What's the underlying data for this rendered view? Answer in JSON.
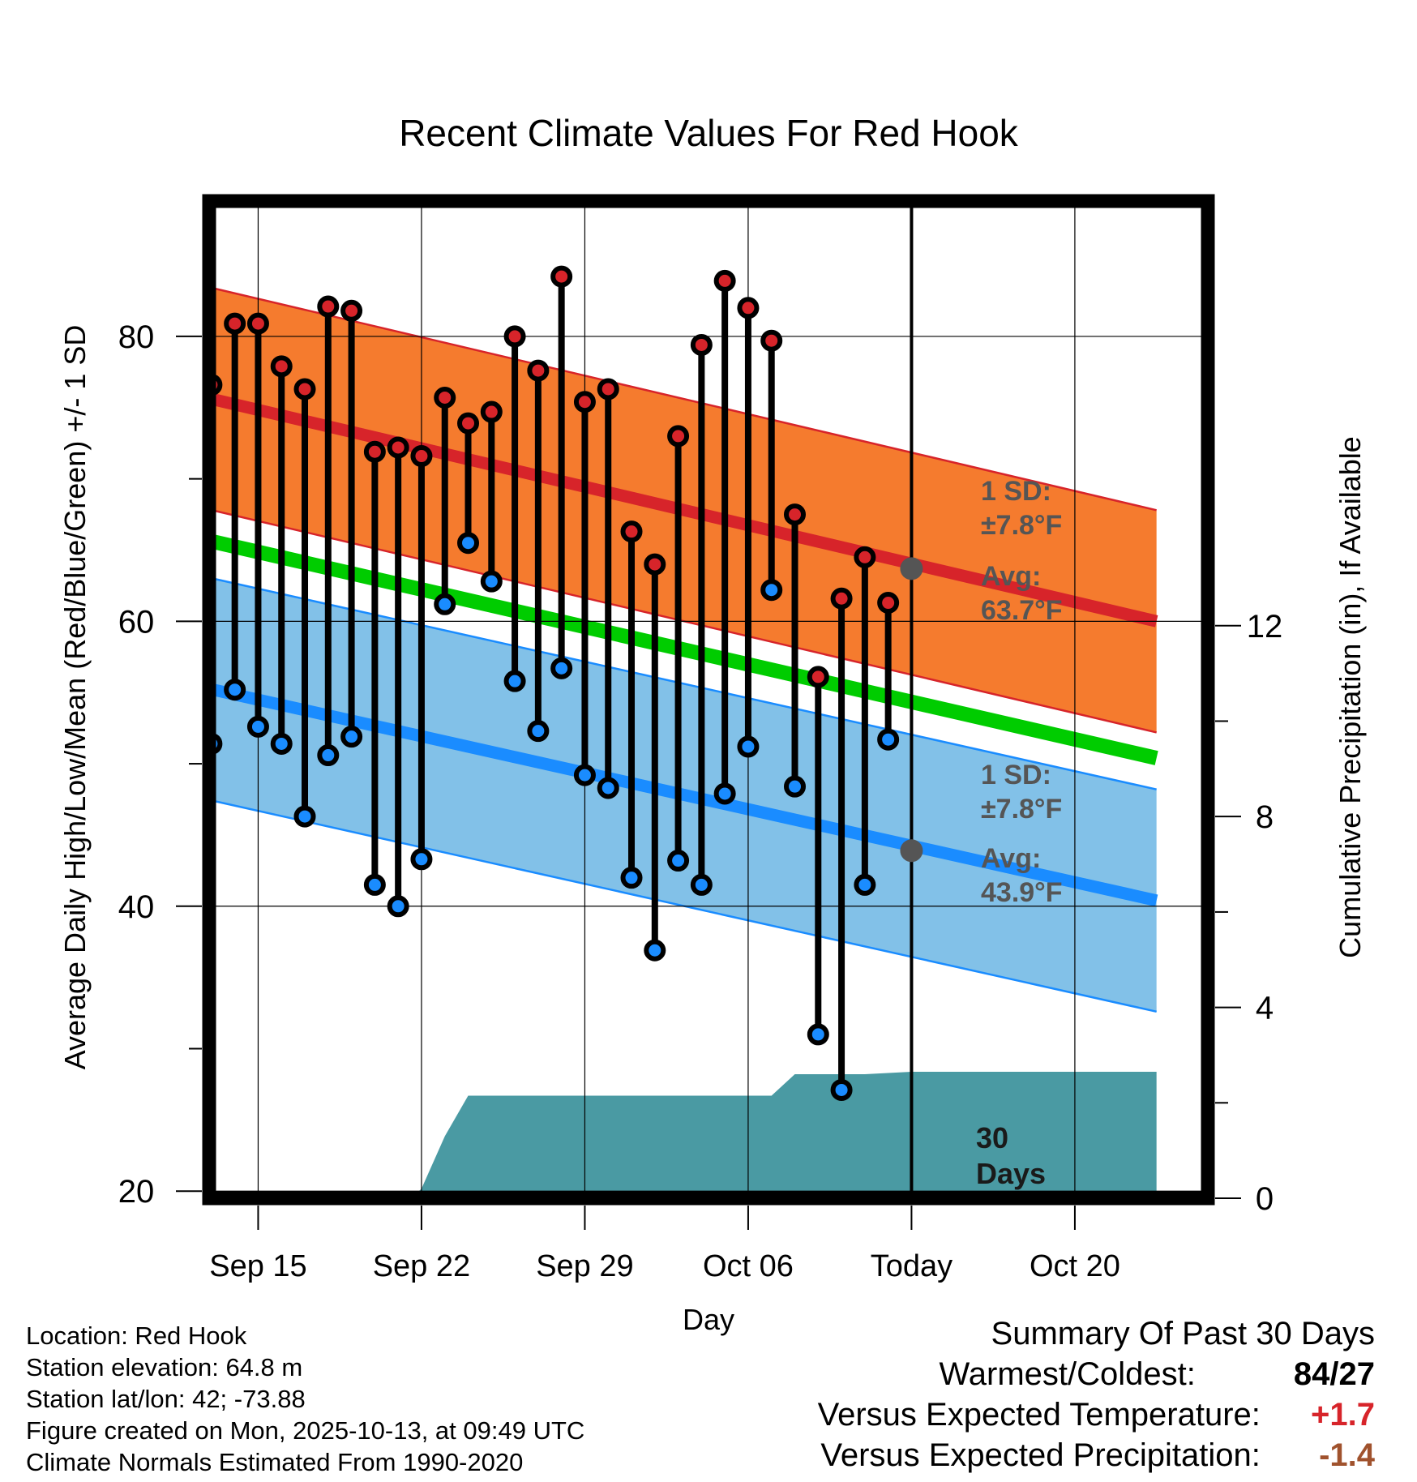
{
  "chart_data": {
    "type": "line",
    "title": "Recent Climate Values For Red Hook",
    "xlabel": "Day",
    "ylabel": "Average Daily High/Low/Mean (Red/Blue/Green) +/- 1 SD",
    "y2label": "Cumulative Precipitation (in), If Available",
    "ylim": [
      19.5,
      89.5
    ],
    "y2lim": [
      0,
      20.9
    ],
    "xlim": [
      -2.1,
      40.7
    ],
    "yticks": [
      "20",
      "40",
      "60",
      "80"
    ],
    "y2ticks": [
      "0",
      "4",
      "8",
      "12"
    ],
    "xticks": [
      {
        "pos": 0,
        "label": "Sep 15"
      },
      {
        "pos": 7,
        "label": "Sep 22"
      },
      {
        "pos": 14,
        "label": "Sep 29"
      },
      {
        "pos": 21,
        "label": "Oct 06"
      },
      {
        "pos": 28,
        "label": "Today"
      },
      {
        "pos": 35,
        "label": "Oct 20"
      }
    ],
    "today_index": 28,
    "grid": true,
    "daily_obs": {
      "x": [
        -2,
        -1,
        0,
        1,
        2,
        3,
        4,
        5,
        6,
        7,
        8,
        9,
        10,
        11,
        12,
        13,
        14,
        15,
        16,
        17,
        18,
        19,
        20,
        21,
        22,
        23,
        24,
        25,
        26,
        27
      ],
      "high": [
        76.6,
        80.9,
        80.9,
        77.9,
        76.3,
        82.1,
        81.8,
        71.9,
        72.2,
        71.6,
        75.7,
        73.9,
        74.7,
        80.0,
        77.6,
        84.2,
        75.4,
        76.3,
        66.3,
        64.0,
        73.0,
        79.4,
        83.9,
        82.0,
        79.7,
        67.5,
        56.1,
        61.6,
        64.5,
        61.3
      ],
      "low": [
        51.4,
        55.2,
        52.6,
        51.4,
        46.3,
        50.6,
        51.9,
        41.5,
        40.0,
        43.3,
        61.2,
        65.5,
        62.8,
        55.8,
        52.3,
        56.7,
        49.2,
        48.3,
        42.0,
        36.9,
        43.2,
        41.5,
        47.9,
        51.2,
        62.2,
        48.4,
        31.0,
        27.1,
        41.5,
        51.7
      ]
    },
    "normals": {
      "x": [
        -2.75,
        38.5
      ],
      "avg_high": [
        75.9,
        60.0
      ],
      "avg_high_sd": 7.8,
      "avg_low": [
        55.5,
        40.4
      ],
      "avg_low_sd": 7.8,
      "avg_mean": [
        65.9,
        50.4
      ]
    },
    "precip": {
      "x": [
        -2.75,
        6.55,
        7.0,
        8.0,
        9.0,
        12.0,
        17.0,
        21.0,
        22.0,
        23.0,
        26.0,
        28.0,
        38.5
      ],
      "cum": [
        0.0,
        0.0,
        0.2,
        1.3,
        2.15,
        2.15,
        2.15,
        2.15,
        2.15,
        2.6,
        2.6,
        2.65,
        2.65
      ]
    },
    "annotations": {
      "high_sd_label": "1 SD:",
      "high_sd_value": "±7.8°F",
      "high_avg_label": "Avg:",
      "high_avg_value": "63.7°F",
      "high_avg_point": 63.7,
      "low_sd_label": "1 SD:",
      "low_sd_value": "±7.8°F",
      "low_avg_label": "Avg:",
      "low_avg_value": "43.9°F",
      "low_avg_point": 43.9,
      "window_label_1": "30",
      "window_label_2": "Days"
    },
    "colors": {
      "high_band": "#f57b2e",
      "high_line": "#d7242a",
      "mean_line": "#00cc00",
      "low_band": "#82c1e8",
      "low_line": "#1a8cff",
      "precip": "#4a9aa3",
      "high_dot": "#d7242a",
      "low_dot": "#1a8cff",
      "annotation": "#555555"
    }
  },
  "footer": {
    "location": "Location: Red Hook",
    "elevation": "Station elevation: 64.8 m",
    "latlon": "Station lat/lon: 42; -73.88",
    "created": "Figure created on Mon, 2025-10-13, at 09:49 UTC",
    "normals": "Climate Normals Estimated From 1990-2020"
  },
  "summary": {
    "title": "Summary Of Past 30 Days",
    "warm_cold_label": "Warmest/Coldest:",
    "warm_value": "84",
    "slash": "/",
    "cold_value": "27",
    "temp_label": "Versus Expected Temperature:",
    "temp_value": "+1.7",
    "temp_color": "#d7242a",
    "precip_label": "Versus Expected Precipitation:",
    "precip_value": "-1.4",
    "precip_color": "#a0522d"
  }
}
